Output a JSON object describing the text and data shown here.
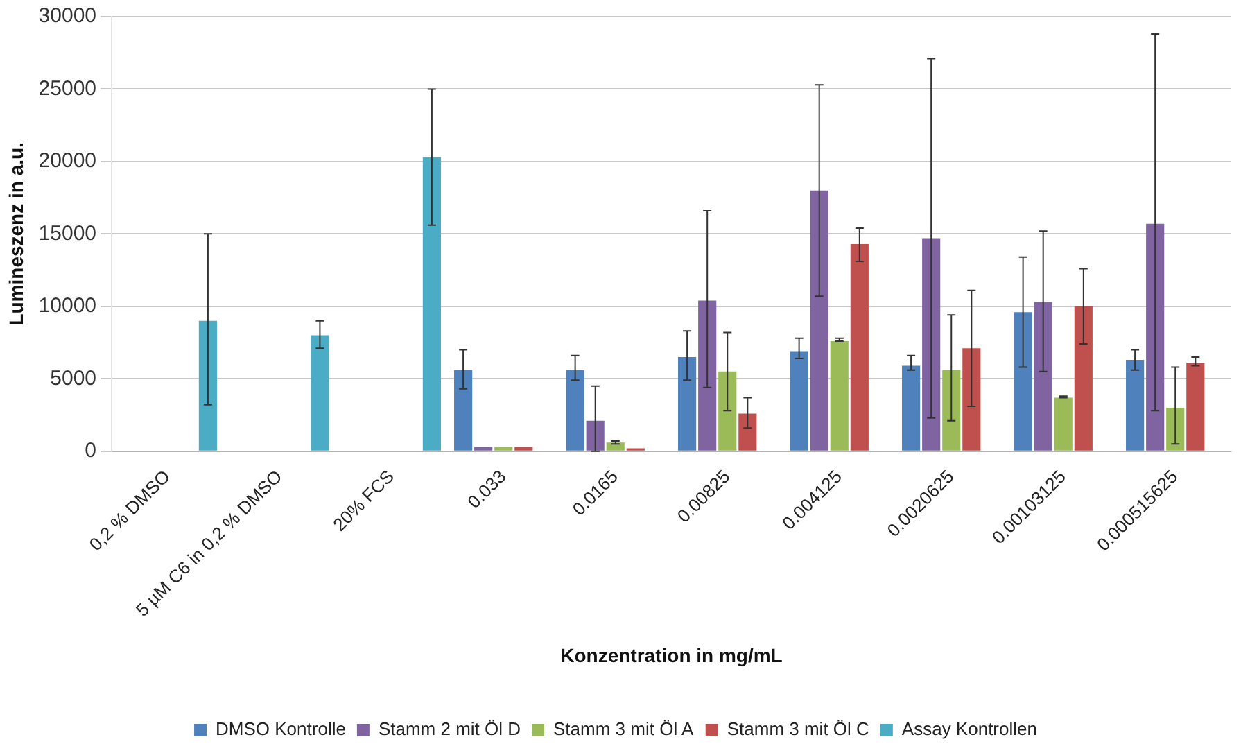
{
  "chart_data": {
    "type": "bar",
    "xlabel": "Konzentration in mg/mL",
    "ylabel": "Lumineszenz in a.u.",
    "categories": [
      "0,2 % DMSO",
      "5 µM C6 in 0,2 % DMSO",
      "20% FCS",
      "0.033",
      "0.0165",
      "0.00825",
      "0.004125",
      "0.0020625",
      "0.00103125",
      "0.000515625"
    ],
    "ylim": [
      0,
      30000
    ],
    "yticks": [
      0,
      5000,
      10000,
      15000,
      20000,
      25000,
      30000
    ],
    "grid": "y",
    "legend": "bottom",
    "series": [
      {
        "name": "DMSO Kontrolle",
        "color": "#4f81bd",
        "values": [
          null,
          null,
          null,
          5600,
          5600,
          6500,
          6900,
          5900,
          9600,
          6300
        ],
        "errors": [
          null,
          null,
          null,
          [
            4300,
            7000
          ],
          [
            4900,
            6600
          ],
          [
            4900,
            8300
          ],
          [
            6400,
            7800
          ],
          [
            5600,
            6600
          ],
          [
            5800,
            13400
          ],
          [
            5600,
            7000
          ]
        ]
      },
      {
        "name": "Stamm 2 mit Öl D",
        "color": "#8064a2",
        "values": [
          null,
          null,
          null,
          300,
          2100,
          10400,
          18000,
          14700,
          10300,
          15700
        ],
        "errors": [
          null,
          null,
          null,
          null,
          [
            0,
            4500
          ],
          [
            4400,
            16600
          ],
          [
            10700,
            25300
          ],
          [
            2300,
            27100
          ],
          [
            5500,
            15200
          ],
          [
            2800,
            28800
          ]
        ]
      },
      {
        "name": "Stamm 3 mit Öl A",
        "color": "#9bbb59",
        "values": [
          null,
          null,
          null,
          300,
          600,
          5500,
          7600,
          5600,
          3700,
          3000
        ],
        "errors": [
          null,
          null,
          null,
          null,
          [
            500,
            700
          ],
          [
            2800,
            8200
          ],
          [
            7600,
            7800
          ],
          [
            2100,
            9400
          ],
          [
            3700,
            3800
          ],
          [
            500,
            5800
          ]
        ]
      },
      {
        "name": "Stamm 3 mit Öl C",
        "color": "#c0504d",
        "values": [
          null,
          null,
          null,
          300,
          200,
          2600,
          14300,
          7100,
          10000,
          6100
        ],
        "errors": [
          null,
          null,
          null,
          null,
          null,
          [
            1600,
            3700
          ],
          [
            13100,
            15400
          ],
          [
            3100,
            11100
          ],
          [
            7400,
            12600
          ],
          [
            5900,
            6500
          ]
        ]
      },
      {
        "name": "Assay Kontrollen",
        "color": "#4bacc6",
        "values": [
          9000,
          8000,
          20300,
          null,
          null,
          null,
          null,
          null,
          null,
          null
        ],
        "errors": [
          [
            3200,
            15000
          ],
          [
            7100,
            9000
          ],
          [
            15600,
            25000
          ],
          null,
          null,
          null,
          null,
          null,
          null,
          null
        ]
      }
    ]
  }
}
